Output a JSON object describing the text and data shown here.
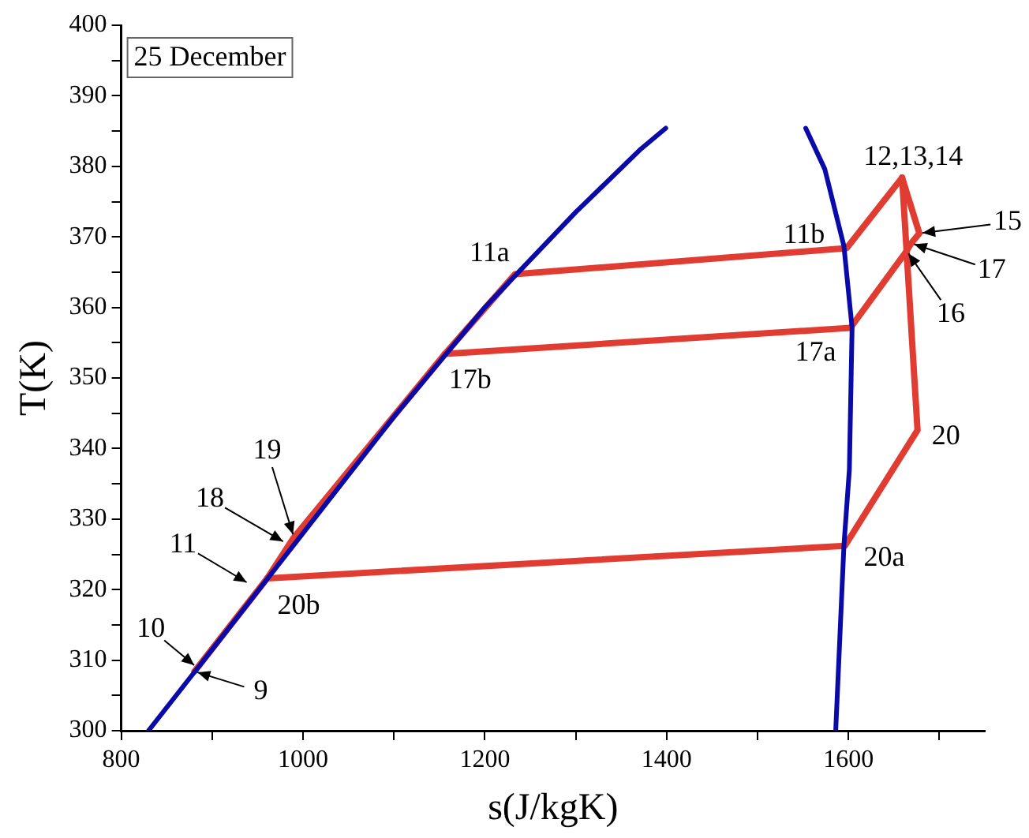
{
  "chart_data": {
    "type": "line",
    "xlabel": "s(J/kgK)",
    "ylabel": "T(K)",
    "xlim": [
      800,
      1750
    ],
    "ylim": [
      300,
      400
    ],
    "xticks": [
      800,
      {
        "value": 900,
        "label": null
      },
      1000,
      {
        "value": 1100,
        "label": null
      },
      1200,
      {
        "value": 1300,
        "label": null
      },
      1400,
      {
        "value": 1500,
        "label": null
      },
      1600,
      {
        "value": 1700,
        "label": null
      }
    ],
    "yticks": [
      300,
      {
        "value": 305,
        "label": null
      },
      310,
      {
        "value": 315,
        "label": null
      },
      320,
      {
        "value": 325,
        "label": null
      },
      330,
      {
        "value": 335,
        "label": null
      },
      340,
      {
        "value": 345,
        "label": null
      },
      350,
      {
        "value": 355,
        "label": null
      },
      360,
      {
        "value": 365,
        "label": null
      },
      370,
      {
        "value": 375,
        "label": null
      },
      380,
      {
        "value": 385,
        "label": null
      },
      390,
      {
        "value": 395,
        "label": null
      },
      400
    ],
    "grid": false,
    "legend": false,
    "marker": "none",
    "line_style": "solid",
    "series": [
      {
        "color": "#0a0aa8",
        "x": [
          830,
          900,
          1000,
          1100,
          1200,
          1300,
          1372,
          1399
        ],
        "values": [
          300,
          311.5,
          328,
          344.5,
          360,
          373.5,
          382.5,
          385.4
        ]
      },
      {
        "color": "#0a0aa8",
        "x": [
          1553,
          1574,
          1595,
          1604,
          1601,
          1595,
          1586
        ],
        "values": [
          385.4,
          379.6,
          368.7,
          357.1,
          337,
          326.2,
          300
        ]
      },
      {
        "color": "#e03c31",
        "x": [
          880.6,
          960.6,
          990,
          1156,
          1233,
          1598,
          1659,
          1678,
          1669,
          1664,
          1602,
          1156
        ],
        "values": [
          308.4,
          321.6,
          327.4,
          353.4,
          364.7,
          368.4,
          378.4,
          370.5,
          369.1,
          368,
          357.1,
          353.4
        ]
      },
      {
        "color": "#e03c31",
        "x": [
          1659,
          1676,
          1596,
          960.6
        ],
        "values": [
          378.4,
          342.6,
          326.2,
          321.6
        ]
      }
    ],
    "annotations": [
      "25 December",
      {
        "text": "9",
        "x": 880.6,
        "y": 308.4
      },
      {
        "text": "10",
        "x": 883,
        "y": 309
      },
      {
        "text": "11",
        "x": 941,
        "y": 320.8
      },
      {
        "text": "20b",
        "x": 960.6,
        "y": 321.6
      },
      {
        "text": "18",
        "x": 981,
        "y": 326.6
      },
      {
        "text": "19",
        "x": 990,
        "y": 327.4
      },
      {
        "text": "17b",
        "x": 1156,
        "y": 353.4
      },
      {
        "text": "11a",
        "x": 1233,
        "y": 364.7
      },
      {
        "text": "11b",
        "x": 1598,
        "y": 368.4
      },
      {
        "text": "12,13,14",
        "x": 1659,
        "y": 378.4
      },
      {
        "text": "15",
        "x": 1678,
        "y": 370.5
      },
      {
        "text": "17",
        "x": 1669,
        "y": 369.1
      },
      {
        "text": "16",
        "x": 1664,
        "y": 368
      },
      {
        "text": "17a",
        "x": 1602,
        "y": 357.1
      },
      {
        "text": "20",
        "x": 1676,
        "y": 342.6
      },
      {
        "text": "20a",
        "x": 1596,
        "y": 326.2
      }
    ]
  }
}
